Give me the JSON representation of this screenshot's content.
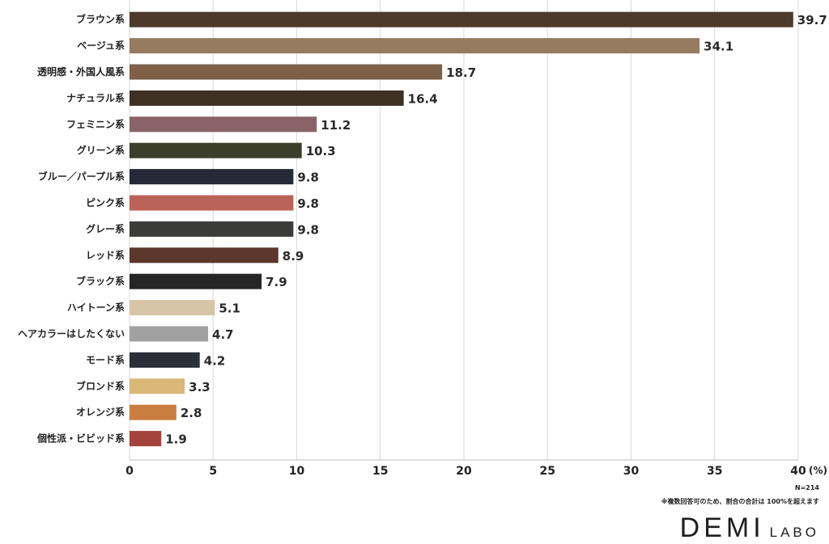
{
  "chart_data": {
    "type": "bar",
    "orientation": "horizontal",
    "categories": [
      "ブラウン系",
      "ベージュ系",
      "透明感・外国人風系",
      "ナチュラル系",
      "フェミニン系",
      "グリーン系",
      "ブルー／パープル系",
      "ピンク系",
      "グレー系",
      "レッド系",
      "ブラック系",
      "ハイトーン系",
      "ヘアカラーはしたくない",
      "モード系",
      "ブロンド系",
      "オレンジ系",
      "個性派・ビビッド系"
    ],
    "values": [
      39.7,
      34.1,
      18.7,
      16.4,
      11.2,
      10.3,
      9.8,
      9.8,
      9.8,
      8.9,
      7.9,
      5.1,
      4.7,
      4.2,
      3.3,
      2.8,
      1.9
    ],
    "value_labels": [
      "39.7",
      "34.1",
      "18.7",
      "16.4",
      "11.2",
      "10.3",
      "9.8",
      "9.8",
      "9.8",
      "8.9",
      "7.9",
      "5.1",
      "4.7",
      "4.2",
      "3.3",
      "2.8",
      "1.9"
    ],
    "bar_colors": [
      "#4e3a2a",
      "#977b60",
      "#7e5f48",
      "#3e3124",
      "#8a6368",
      "#3b3e2a",
      "#252938",
      "#ba6358",
      "#3b3b39",
      "#5c372b",
      "#262626",
      "#d7c4a6",
      "#a1a1a1",
      "#2b2f38",
      "#d9b779",
      "#c97d3e",
      "#a2443c"
    ],
    "xlim": [
      0,
      40
    ],
    "xticks": [
      0,
      5,
      10,
      15,
      20,
      25,
      30,
      35,
      40
    ],
    "tick_labels": [
      "0",
      "5",
      "10",
      "15",
      "20",
      "25",
      "30",
      "35",
      "40"
    ],
    "unit": "(%)",
    "grid": true
  },
  "notes": {
    "sample_size": "N=214",
    "footnote": "※複数回答可のため、割合の合計は 100%を超えます"
  },
  "logo": {
    "main": "DEMI",
    "sub": "LABO"
  }
}
